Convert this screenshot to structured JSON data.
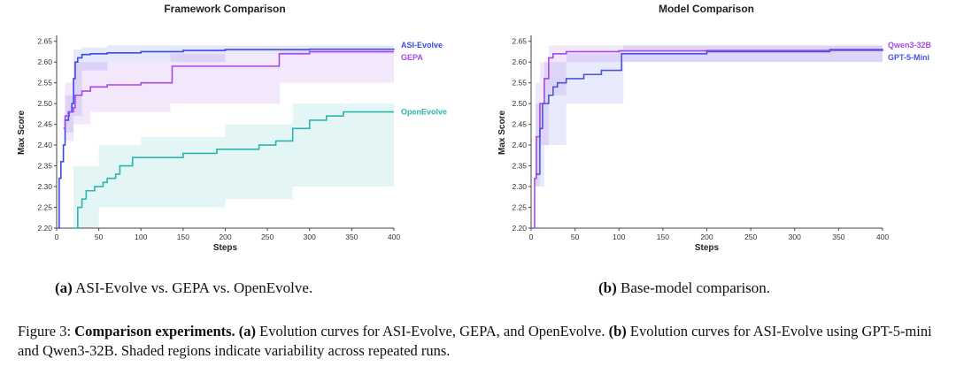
{
  "chart_data": [
    {
      "type": "line",
      "title": "Framework Comparison",
      "xlabel": "Steps",
      "ylabel": "Max Score",
      "xlim": [
        0,
        400
      ],
      "ylim": [
        2.2,
        2.66
      ],
      "xticks": [
        0,
        50,
        100,
        150,
        200,
        250,
        300,
        350,
        400
      ],
      "yticks": [
        2.2,
        2.25,
        2.3,
        2.35,
        2.4,
        2.45,
        2.5,
        2.55,
        2.6,
        2.65
      ],
      "grid": false,
      "legend": "end-of-line labels",
      "series": [
        {
          "name": "ASI-Evolve",
          "color": "#3a4be6",
          "points": [
            [
              2,
              2.2
            ],
            [
              3,
              2.32
            ],
            [
              5,
              2.36
            ],
            [
              8,
              2.4
            ],
            [
              10,
              2.46
            ],
            [
              14,
              2.48
            ],
            [
              18,
              2.5
            ],
            [
              20,
              2.56
            ],
            [
              22,
              2.6
            ],
            [
              25,
              2.61
            ],
            [
              30,
              2.618
            ],
            [
              40,
              2.62
            ],
            [
              60,
              2.622
            ],
            [
              100,
              2.625
            ],
            [
              150,
              2.628
            ],
            [
              200,
              2.63
            ],
            [
              300,
              2.631
            ],
            [
              400,
              2.632
            ]
          ],
          "band": [
            [
              10,
              2.43,
              2.52
            ],
            [
              20,
              2.47,
              2.63
            ],
            [
              30,
              2.58,
              2.635
            ],
            [
              60,
              2.6,
              2.64
            ],
            [
              200,
              2.62,
              2.64
            ],
            [
              400,
              2.62,
              2.64
            ]
          ]
        },
        {
          "name": "GEPA",
          "color": "#a649e8",
          "points": [
            [
              8,
              2.44
            ],
            [
              10,
              2.47
            ],
            [
              15,
              2.48
            ],
            [
              20,
              2.49
            ],
            [
              22,
              2.52
            ],
            [
              30,
              2.53
            ],
            [
              40,
              2.54
            ],
            [
              60,
              2.545
            ],
            [
              100,
              2.55
            ],
            [
              135,
              2.55
            ],
            [
              137,
              2.59
            ],
            [
              160,
              2.59
            ],
            [
              200,
              2.59
            ],
            [
              262,
              2.59
            ],
            [
              264,
              2.62
            ],
            [
              300,
              2.625
            ],
            [
              400,
              2.625
            ]
          ],
          "band": [
            [
              10,
              2.41,
              2.55
            ],
            [
              20,
              2.45,
              2.6
            ],
            [
              40,
              2.48,
              2.6
            ],
            [
              135,
              2.5,
              2.62
            ],
            [
              265,
              2.55,
              2.63
            ],
            [
              400,
              2.6,
              2.63
            ]
          ]
        },
        {
          "name": "OpenEvolve",
          "color": "#2bb5ae",
          "points": [
            [
              20,
              2.2
            ],
            [
              25,
              2.25
            ],
            [
              30,
              2.27
            ],
            [
              35,
              2.29
            ],
            [
              45,
              2.3
            ],
            [
              55,
              2.31
            ],
            [
              60,
              2.32
            ],
            [
              70,
              2.33
            ],
            [
              75,
              2.35
            ],
            [
              90,
              2.37
            ],
            [
              100,
              2.37
            ],
            [
              130,
              2.37
            ],
            [
              150,
              2.38
            ],
            [
              190,
              2.39
            ],
            [
              240,
              2.4
            ],
            [
              260,
              2.41
            ],
            [
              280,
              2.44
            ],
            [
              300,
              2.46
            ],
            [
              320,
              2.47
            ],
            [
              340,
              2.48
            ],
            [
              400,
              2.48
            ]
          ],
          "band": [
            [
              20,
              2.2,
              2.35
            ],
            [
              50,
              2.25,
              2.4
            ],
            [
              100,
              2.25,
              2.42
            ],
            [
              200,
              2.27,
              2.45
            ],
            [
              280,
              2.3,
              2.5
            ],
            [
              400,
              2.43,
              2.51
            ]
          ]
        }
      ]
    },
    {
      "type": "line",
      "title": "Model Comparison",
      "xlabel": "Steps",
      "ylabel": "Max Score",
      "xlim": [
        0,
        400
      ],
      "ylim": [
        2.2,
        2.66
      ],
      "xticks": [
        0,
        50,
        100,
        150,
        200,
        250,
        300,
        350,
        400
      ],
      "yticks": [
        2.2,
        2.25,
        2.3,
        2.35,
        2.4,
        2.45,
        2.5,
        2.55,
        2.6,
        2.65
      ],
      "grid": false,
      "legend": "end-of-line labels",
      "series": [
        {
          "name": "Qwen3-32B",
          "color": "#a649e8",
          "points": [
            [
              2,
              2.2
            ],
            [
              4,
              2.32
            ],
            [
              6,
              2.42
            ],
            [
              10,
              2.5
            ],
            [
              15,
              2.56
            ],
            [
              20,
              2.61
            ],
            [
              25,
              2.62
            ],
            [
              40,
              2.625
            ],
            [
              100,
              2.627
            ],
            [
              200,
              2.628
            ],
            [
              400,
              2.632
            ]
          ],
          "band": [
            [
              5,
              2.3,
              2.55
            ],
            [
              10,
              2.4,
              2.6
            ],
            [
              20,
              2.52,
              2.64
            ],
            [
              40,
              2.6,
              2.64
            ],
            [
              400,
              2.62,
              2.64
            ]
          ]
        },
        {
          "name": "GPT-5-Mini",
          "color": "#4a55dc",
          "points": [
            [
              5,
              2.33
            ],
            [
              10,
              2.44
            ],
            [
              13,
              2.5
            ],
            [
              20,
              2.52
            ],
            [
              25,
              2.54
            ],
            [
              30,
              2.55
            ],
            [
              40,
              2.56
            ],
            [
              60,
              2.57
            ],
            [
              80,
              2.58
            ],
            [
              100,
              2.58
            ],
            [
              103,
              2.62
            ],
            [
              200,
              2.625
            ],
            [
              340,
              2.63
            ],
            [
              400,
              2.63
            ]
          ],
          "band": [
            [
              5,
              2.3,
              2.5
            ],
            [
              15,
              2.4,
              2.6
            ],
            [
              40,
              2.5,
              2.62
            ],
            [
              100,
              2.5,
              2.63
            ],
            [
              105,
              2.6,
              2.64
            ],
            [
              400,
              2.62,
              2.64
            ]
          ]
        }
      ]
    }
  ],
  "captions": {
    "a_tag": "(a)",
    "a_text": " ASI-Evolve vs. GEPA vs. OpenEvolve.",
    "b_tag": "(b)",
    "b_text": " Base-model comparison.",
    "figure_prefix": "Figure 3: ",
    "figure_bold": "Comparison experiments.",
    "figure_a_tag": "(a)",
    "figure_a_text": " Evolution curves for ASI-Evolve, GEPA, and OpenEvolve. ",
    "figure_b_tag": "(b)",
    "figure_b_text": " Evolution curves for ASI-Evolve using GPT-5-mini and Qwen3-32B. Shaded regions indicate variability across repeated runs."
  }
}
